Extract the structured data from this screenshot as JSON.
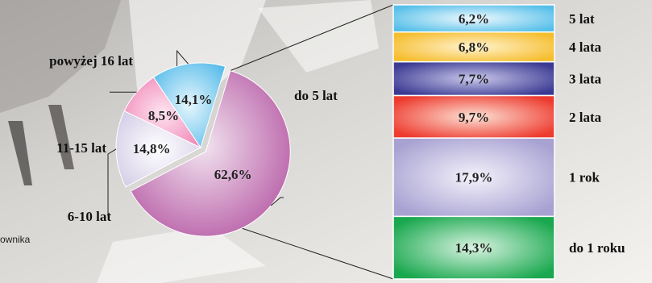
{
  "caption_text": "ownika",
  "colors": {
    "pie": [
      "#b2519f",
      "#e3ddee",
      "#f07fb3",
      "#49b6e8"
    ],
    "bar": [
      "#1aa84f",
      "#a8a2d2",
      "#ee3b2f",
      "#3b3a93",
      "#f6bd2d",
      "#56bfe9"
    ]
  },
  "chart_data": [
    {
      "type": "pie",
      "categories": [
        "do 5 lat",
        "6-10 lat",
        "11-15 lat",
        "powyżej 16 lat"
      ],
      "values": [
        62.6,
        14.8,
        8.5,
        14.1
      ],
      "value_labels": [
        "62,6%",
        "14,8%",
        "8,5%",
        "14,1%"
      ],
      "exploded_category": "do 5 lat"
    },
    {
      "type": "bar",
      "stacked": true,
      "breakdown_of": "do 5 lat",
      "categories": [
        "do 1 roku",
        "1 rok",
        "2 lata",
        "3 lata",
        "4 lata",
        "5 lat"
      ],
      "values": [
        14.3,
        17.9,
        9.7,
        7.7,
        6.8,
        6.2
      ],
      "value_labels": [
        "14,3%",
        "17,9%",
        "9,7%",
        "7,7%",
        "6,8%",
        "6,2%"
      ]
    }
  ]
}
